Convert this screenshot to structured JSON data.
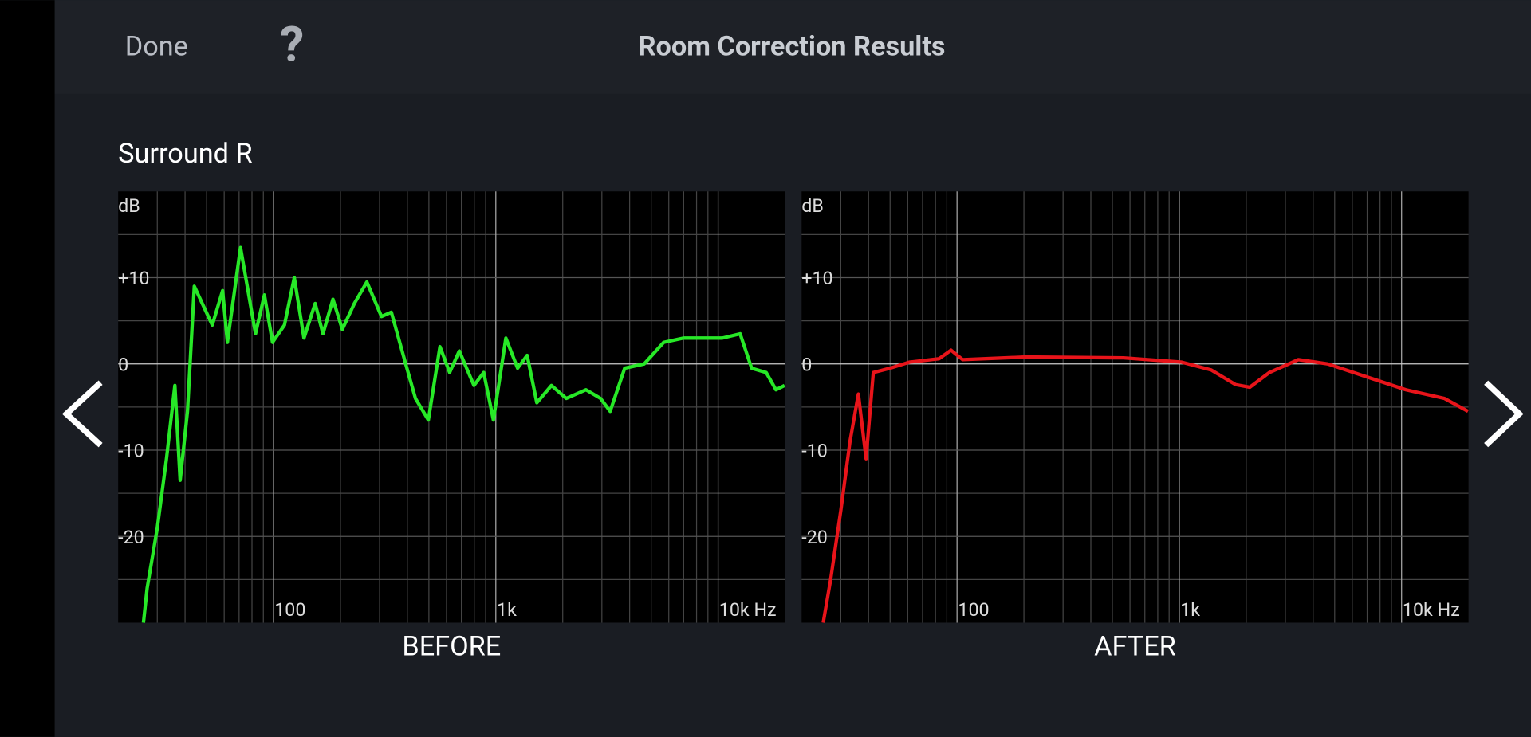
{
  "header": {
    "done": "Done",
    "help": "?",
    "title": "Room Correction Results"
  },
  "channel": "Surround R",
  "chart_data": [
    {
      "type": "line",
      "title": "BEFORE",
      "ylabel": "dB",
      "xscale": "log",
      "xlim": [
        20,
        20000
      ],
      "ylim": [
        -30,
        20
      ],
      "xticks": [
        100,
        {
          "value": 1000,
          "label": "1k"
        },
        {
          "value": 10000,
          "label": "10k Hz"
        }
      ],
      "yticks": [
        {
          "value": 10,
          "label": "+10"
        },
        0,
        -10,
        -20
      ],
      "x_grid": [
        30,
        40,
        50,
        60,
        70,
        80,
        90,
        200,
        300,
        400,
        500,
        600,
        700,
        800,
        900,
        2000,
        3000,
        4000,
        5000,
        6000,
        7000,
        8000,
        9000
      ],
      "y_grid": [
        15,
        5,
        -5,
        -15,
        -25
      ],
      "series": [
        {
          "color": "#27e827",
          "x": [
            26,
            27,
            30,
            33,
            36,
            38,
            41,
            44,
            53,
            59,
            62,
            71,
            83,
            91,
            99,
            112,
            124,
            137,
            154,
            167,
            185,
            204,
            231,
            263,
            306,
            339,
            393,
            435,
            497,
            561,
            620,
            685,
            797,
            882,
            975,
            1110,
            1253,
            1384,
            1530,
            1780,
            2075,
            2543,
            2960,
            3270,
            3800,
            4650,
            5690,
            6980,
            8540,
            10450,
            12560,
            14150,
            16450,
            18200,
            19900
          ],
          "values": [
            -30,
            -26,
            -19,
            -11,
            -2.5,
            -13.5,
            -5.5,
            9,
            4.5,
            8.5,
            2.5,
            13.5,
            3.5,
            8,
            2.5,
            4.5,
            10,
            3,
            7,
            3.5,
            7.5,
            4,
            7,
            9.5,
            5.5,
            6,
            0,
            -4,
            -6.5,
            2,
            -1,
            1.5,
            -2.5,
            -1,
            -6.5,
            3,
            -0.5,
            1,
            -4.5,
            -2.5,
            -4,
            -3,
            -4,
            -5.5,
            -0.5,
            0,
            2.5,
            3,
            3,
            3,
            3.5,
            -0.5,
            -1,
            -3,
            -2.5
          ]
        }
      ]
    },
    {
      "type": "line",
      "title": "AFTER",
      "ylabel": "dB",
      "xscale": "log",
      "xlim": [
        20,
        20000
      ],
      "ylim": [
        -30,
        20
      ],
      "xticks": [
        100,
        {
          "value": 1000,
          "label": "1k"
        },
        {
          "value": 10000,
          "label": "10k Hz"
        }
      ],
      "yticks": [
        {
          "value": 10,
          "label": "+10"
        },
        0,
        -10,
        -20
      ],
      "x_grid": [
        30,
        40,
        50,
        60,
        70,
        80,
        90,
        200,
        300,
        400,
        500,
        600,
        700,
        800,
        900,
        2000,
        3000,
        4000,
        5000,
        6000,
        7000,
        8000,
        9000
      ],
      "y_grid": [
        15,
        5,
        -5,
        -15,
        -25
      ],
      "series": [
        {
          "color": "#e8141a",
          "x": [
            25,
            27,
            30,
            33,
            36,
            39,
            42,
            50,
            61,
            83,
            94,
            106,
            204,
            561,
            1026,
            1390,
            1790,
            2075,
            2543,
            3430,
            4650,
            6980,
            10450,
            15600,
            19900
          ],
          "values": [
            -30,
            -25,
            -17,
            -9,
            -3.5,
            -11,
            -1,
            -0.5,
            0.2,
            0.6,
            1.6,
            0.5,
            0.8,
            0.7,
            0.2,
            -0.7,
            -2.4,
            -2.7,
            -1,
            0.5,
            0,
            -1.5,
            -3,
            -4,
            -5.5
          ]
        }
      ]
    }
  ]
}
